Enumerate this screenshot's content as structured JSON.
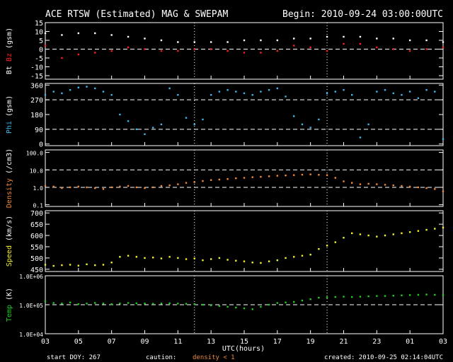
{
  "header": {
    "title": "ACE RTSW (Estimated) MAG & SWEPAM",
    "begin": "Begin: 2010-09-24 03:00:00UTC"
  },
  "footer": {
    "start_doy": "start DOY: 267",
    "caution_label": "caution:",
    "caution_note": "density < 1",
    "created": "created: 2010-09-25 02:14:04UTC"
  },
  "colors": {
    "bt": "#ffffff",
    "bz": "#ff2020",
    "phi": "#3fb6e6",
    "density": "#f0883a",
    "speed": "#f2f22c",
    "temp": "#22cc22",
    "axis": "#ffffff",
    "grid": "#ffffff"
  },
  "chart_data": [
    {
      "type": "scatter",
      "panel": "mag",
      "ylabel_parts": [
        {
          "text": "Bt",
          "color": "#ffffff"
        },
        {
          "text": " ",
          "color": "#ffffff"
        },
        {
          "text": "Bz",
          "color": "#ff2020"
        },
        {
          "text": " (gsm)",
          "color": "#ffffff"
        }
      ],
      "ylim": [
        -17,
        15
      ],
      "yticks": [
        -15,
        -10,
        -5,
        0,
        5,
        10,
        15
      ],
      "ytick_labels": [
        "-15",
        "-10",
        "-5",
        "0",
        "5",
        "10",
        "15"
      ],
      "dashed": [
        0
      ],
      "series": [
        {
          "name": "Bt",
          "color": "#ffffff",
          "x": [
            0,
            1,
            2,
            3,
            4,
            5,
            6,
            7,
            8,
            9,
            10,
            11,
            12,
            13,
            14,
            15,
            16,
            17,
            18,
            19,
            20,
            21,
            22,
            23,
            24
          ],
          "y": [
            9,
            8,
            9,
            9,
            8,
            7,
            6,
            5,
            4,
            4,
            4,
            4,
            5,
            5,
            5,
            6,
            6,
            7,
            7,
            7,
            6,
            6,
            5,
            5,
            4
          ]
        },
        {
          "name": "Bz",
          "color": "#ff2020",
          "x": [
            0,
            1,
            2,
            3,
            4,
            5,
            6,
            7,
            8,
            9,
            10,
            11,
            12,
            13,
            14,
            15,
            16,
            17,
            18,
            19,
            20,
            21,
            22,
            23,
            24
          ],
          "y": [
            2,
            -5,
            -3,
            -2,
            -1,
            1,
            0,
            -1,
            -1,
            0,
            0,
            -1,
            -2,
            -2,
            -1,
            2,
            1,
            -1,
            3,
            3,
            1,
            0,
            -1,
            0,
            1
          ]
        }
      ]
    },
    {
      "type": "scatter",
      "panel": "phi",
      "ylabel_parts": [
        {
          "text": "Phi",
          "color": "#3fb6e6"
        },
        {
          "text": " (gsm)",
          "color": "#ffffff"
        }
      ],
      "ylim": [
        -10,
        370
      ],
      "yticks": [
        0,
        90,
        180,
        270,
        360
      ],
      "ytick_labels": [
        "0",
        "90",
        "180",
        "270",
        "360"
      ],
      "dashed": [
        90,
        270
      ],
      "series": [
        {
          "name": "Phi",
          "color": "#3fb6e6",
          "x": [
            0,
            0.5,
            1,
            1.5,
            2,
            2.5,
            3,
            3.5,
            4,
            4.5,
            5,
            5.5,
            6,
            6.5,
            7,
            7.5,
            8,
            8.5,
            9,
            9.5,
            10,
            10.5,
            11,
            11.5,
            12,
            12.5,
            13,
            13.5,
            14,
            14.5,
            15,
            15.5,
            16,
            16.5,
            17,
            17.5,
            18,
            18.5,
            19,
            19.5,
            20,
            20.5,
            21,
            21.5,
            22,
            22.5,
            23,
            23.5,
            24
          ],
          "y": [
            300,
            320,
            310,
            330,
            345,
            350,
            340,
            320,
            300,
            180,
            140,
            90,
            60,
            100,
            120,
            340,
            300,
            160,
            120,
            150,
            300,
            320,
            330,
            320,
            310,
            300,
            320,
            330,
            340,
            290,
            170,
            120,
            100,
            150,
            310,
            320,
            330,
            300,
            40,
            120,
            320,
            330,
            310,
            300,
            320,
            280,
            330,
            320,
            30
          ]
        }
      ]
    },
    {
      "type": "scatter",
      "panel": "density",
      "yscale": "log",
      "ylabel_parts": [
        {
          "text": "Density",
          "color": "#f0883a"
        },
        {
          "text": " (/cm3)",
          "color": "#ffffff"
        }
      ],
      "ylim": [
        0.08,
        140
      ],
      "yticks": [
        0.1,
        1,
        10,
        100
      ],
      "ytick_labels": [
        "0.1",
        "1.0",
        "10.0",
        "100.0"
      ],
      "dashed": [
        1,
        10
      ],
      "series": [
        {
          "name": "Density",
          "color": "#f0883a",
          "x": [
            0,
            0.5,
            1,
            1.5,
            2,
            2.5,
            3,
            3.5,
            4,
            4.5,
            5,
            5.5,
            6,
            6.5,
            7,
            7.5,
            8,
            8.5,
            9,
            9.5,
            10,
            10.5,
            11,
            11.5,
            12,
            12.5,
            13,
            13.5,
            14,
            14.5,
            15,
            15.5,
            16,
            16.5,
            17,
            17.5,
            18,
            18.5,
            19,
            19.5,
            20,
            20.5,
            21,
            21.5,
            22,
            22.5,
            23,
            23.5,
            24
          ],
          "y": [
            1.2,
            1.1,
            0.9,
            1.0,
            1.1,
            1.0,
            0.9,
            0.8,
            1.0,
            1.1,
            1.2,
            1.0,
            0.9,
            1.0,
            1.2,
            1.3,
            1.5,
            1.8,
            2.0,
            2.3,
            2.6,
            2.8,
            3.0,
            3.3,
            3.5,
            3.8,
            4.0,
            4.3,
            4.6,
            4.8,
            5.0,
            5.3,
            5.5,
            5.2,
            5.0,
            3.5,
            2.2,
            1.8,
            1.5,
            1.6,
            1.5,
            1.4,
            1.3,
            1.2,
            1.1,
            1.0,
            0.9,
            0.8,
            0.6
          ]
        }
      ]
    },
    {
      "type": "scatter",
      "panel": "speed",
      "ylabel_parts": [
        {
          "text": "Speed",
          "color": "#f2f22c"
        },
        {
          "text": " (km/s)",
          "color": "#ffffff"
        }
      ],
      "ylim": [
        440,
        710
      ],
      "yticks": [
        450,
        500,
        550,
        600,
        650,
        700
      ],
      "ytick_labels": [
        "450",
        "500",
        "550",
        "600",
        "650",
        "700"
      ],
      "dashed": [],
      "series": [
        {
          "name": "Speed",
          "color": "#f2f22c",
          "x": [
            0,
            0.5,
            1,
            1.5,
            2,
            2.5,
            3,
            3.5,
            4,
            4.5,
            5,
            5.5,
            6,
            6.5,
            7,
            7.5,
            8,
            8.5,
            9,
            9.5,
            10,
            10.5,
            11,
            11.5,
            12,
            12.5,
            13,
            13.5,
            14,
            14.5,
            15,
            15.5,
            16,
            16.5,
            17,
            17.5,
            18,
            18.5,
            19,
            19.5,
            20,
            20.5,
            21,
            21.5,
            22,
            22.5,
            23,
            23.5,
            24
          ],
          "y": [
            470,
            465,
            468,
            470,
            466,
            472,
            468,
            470,
            480,
            505,
            510,
            505,
            500,
            502,
            498,
            505,
            500,
            495,
            498,
            490,
            495,
            500,
            492,
            488,
            485,
            480,
            478,
            485,
            490,
            500,
            505,
            510,
            515,
            540,
            555,
            570,
            590,
            610,
            605,
            600,
            595,
            600,
            605,
            610,
            615,
            620,
            625,
            630,
            635
          ]
        }
      ]
    },
    {
      "type": "scatter",
      "panel": "temp",
      "yscale": "log",
      "ylabel_parts": [
        {
          "text": "Temp",
          "color": "#22cc22"
        },
        {
          "text": " (K)",
          "color": "#ffffff"
        }
      ],
      "ylim": [
        10000,
        1000000
      ],
      "yticks": [
        10000,
        100000,
        1000000
      ],
      "ytick_labels": [
        "1.0E+04",
        "1.0E+05",
        "1.0E+06"
      ],
      "dashed": [
        100000
      ],
      "series": [
        {
          "name": "Temp",
          "color": "#22cc22",
          "x": [
            0,
            0.5,
            1,
            1.5,
            2,
            2.5,
            3,
            3.5,
            4,
            4.5,
            5,
            5.5,
            6,
            6.5,
            7,
            7.5,
            8,
            8.5,
            9,
            9.5,
            10,
            10.5,
            11,
            11.5,
            12,
            12.5,
            13,
            13.5,
            14,
            14.5,
            15,
            15.5,
            16,
            16.5,
            17,
            17.5,
            18,
            18.5,
            19,
            19.5,
            20,
            20.5,
            21,
            21.5,
            22,
            22.5,
            23,
            23.5,
            24
          ],
          "y": [
            130000,
            115000,
            110000,
            120000,
            105000,
            110000,
            115000,
            110000,
            105000,
            110000,
            115000,
            112000,
            110000,
            108000,
            110000,
            112000,
            110000,
            108000,
            105000,
            100000,
            95000,
            90000,
            85000,
            80000,
            75000,
            70000,
            85000,
            100000,
            115000,
            120000,
            125000,
            140000,
            155000,
            175000,
            180000,
            185000,
            190000,
            185000,
            190000,
            195000,
            200000,
            200000,
            205000,
            210000,
            215000,
            220000,
            225000,
            220000,
            215000
          ]
        }
      ]
    }
  ],
  "xaxis": {
    "label": "UTC(hours)",
    "range": [
      0,
      24
    ],
    "tick_positions": [
      0,
      2,
      4,
      6,
      8,
      10,
      12,
      14,
      16,
      18,
      20,
      22,
      24
    ],
    "tick_labels": [
      "03",
      "05",
      "07",
      "09",
      "11",
      "13",
      "15",
      "17",
      "19",
      "21",
      "23",
      "01",
      "03"
    ],
    "day_boundaries": [
      9,
      17
    ]
  }
}
